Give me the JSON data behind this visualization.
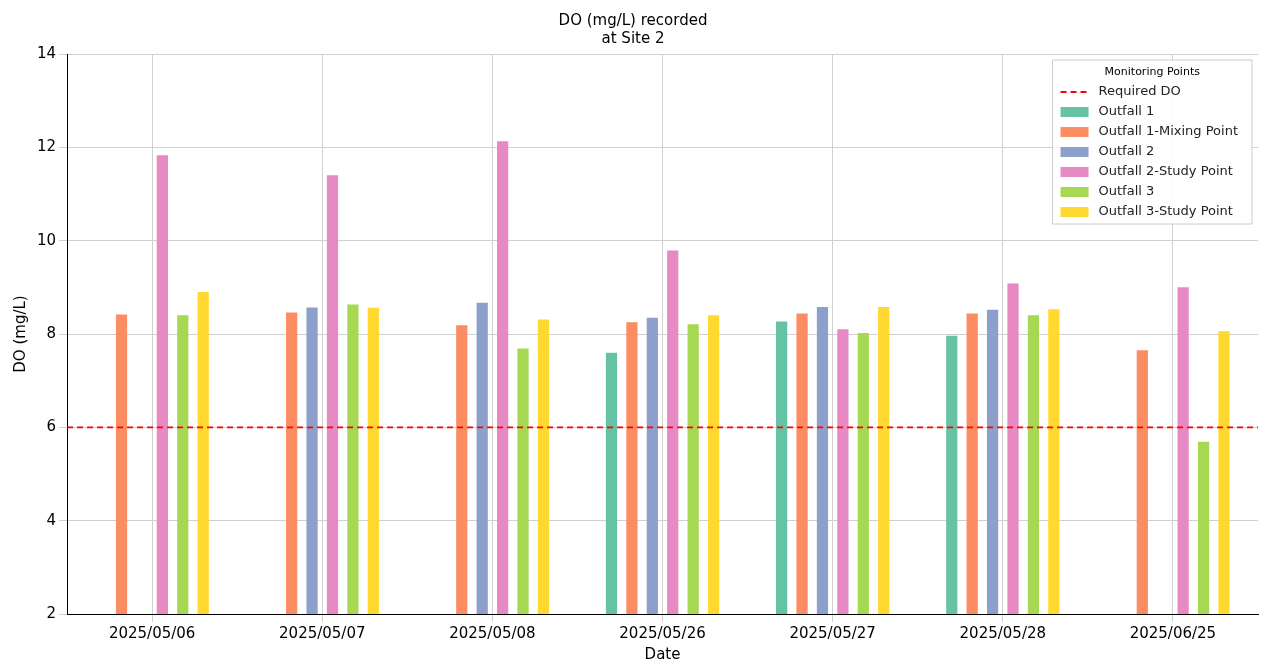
{
  "chart_data": {
    "type": "bar",
    "title": "DO (mg/L) recorded\nat Site 2",
    "xlabel": "Date",
    "ylabel": "DO (mg/L)",
    "legend_title": "Monitoring Points",
    "categories": [
      "2025/05/06",
      "2025/05/07",
      "2025/05/08",
      "2025/05/26",
      "2025/05/27",
      "2025/05/28",
      "2025/06/25"
    ],
    "series": [
      {
        "name": "Outfall 1",
        "color": "#66c2a5",
        "values": [
          null,
          null,
          null,
          7.6,
          8.27,
          7.96,
          null
        ]
      },
      {
        "name": "Outfall 1-Mixing Point",
        "color": "#fc8d62",
        "values": [
          8.42,
          8.46,
          8.19,
          8.25,
          8.44,
          8.44,
          7.65
        ]
      },
      {
        "name": "Outfall 2",
        "color": "#8da0cb",
        "values": [
          null,
          8.57,
          8.67,
          8.35,
          8.58,
          8.52,
          null
        ]
      },
      {
        "name": "Outfall 2-Study Point",
        "color": "#e78ac3",
        "values": [
          11.83,
          11.4,
          12.13,
          9.79,
          8.1,
          9.08,
          9.0
        ]
      },
      {
        "name": "Outfall 3",
        "color": "#a6d854",
        "values": [
          8.4,
          8.63,
          7.69,
          8.21,
          8.02,
          8.4,
          5.69
        ]
      },
      {
        "name": "Outfall 3-Study Point",
        "color": "#ffd92f",
        "values": [
          8.9,
          8.56,
          8.31,
          8.4,
          8.58,
          8.53,
          8.06
        ]
      }
    ],
    "ref_lines": [
      {
        "axis": "y",
        "value": 6,
        "label": "Required DO",
        "color": "#ff0000",
        "line_style": "dashed"
      }
    ],
    "ylim": [
      2,
      14
    ],
    "yticks": [
      2,
      4,
      6,
      8,
      10,
      12,
      14
    ],
    "grid": true,
    "legend": "top right"
  }
}
